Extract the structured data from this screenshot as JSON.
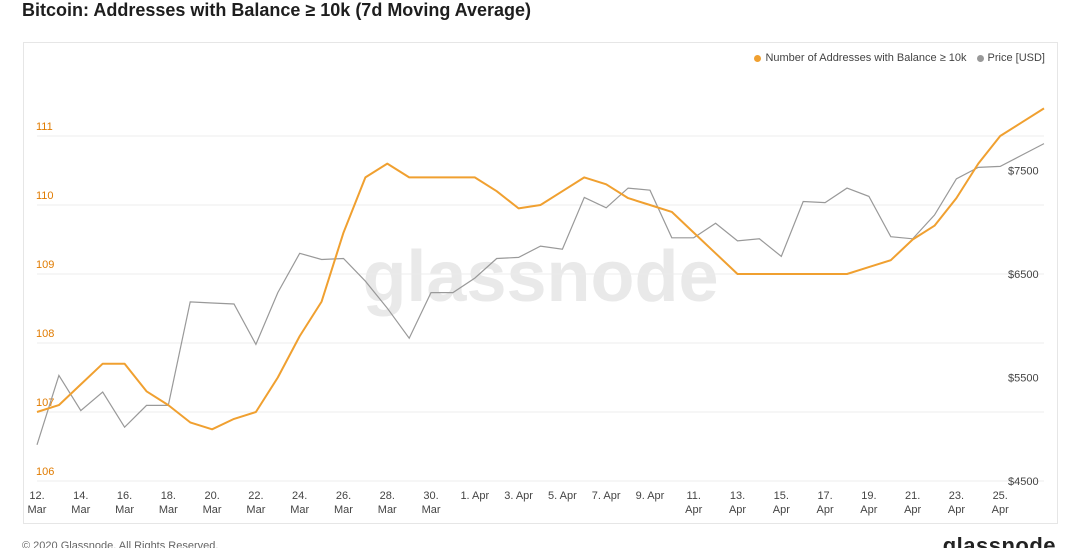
{
  "title": "Bitcoin: Addresses with Balance ≥ 10k (7d Moving Average)",
  "watermark": "glassnode",
  "footer": {
    "copyright": "© 2020 Glassnode. All Rights Reserved.",
    "logo": "glassnode"
  },
  "colors": {
    "addresses": "#f0a030",
    "price": "#999999",
    "grid": "#ececec",
    "left_axis_text": "#e07b00",
    "right_axis_text": "#444444"
  },
  "chart_data": {
    "type": "line",
    "legend_position": "top-right",
    "grid": true,
    "x": [
      "2020-03-11",
      "2020-03-12",
      "2020-03-13",
      "2020-03-14",
      "2020-03-15",
      "2020-03-16",
      "2020-03-17",
      "2020-03-18",
      "2020-03-19",
      "2020-03-20",
      "2020-03-21",
      "2020-03-22",
      "2020-03-23",
      "2020-03-24",
      "2020-03-25",
      "2020-03-26",
      "2020-03-27",
      "2020-03-28",
      "2020-03-29",
      "2020-03-30",
      "2020-03-31",
      "2020-04-01",
      "2020-04-02",
      "2020-04-03",
      "2020-04-04",
      "2020-04-05",
      "2020-04-06",
      "2020-04-07",
      "2020-04-08",
      "2020-04-09",
      "2020-04-10",
      "2020-04-11",
      "2020-04-12",
      "2020-04-13",
      "2020-04-14",
      "2020-04-15",
      "2020-04-16",
      "2020-04-17",
      "2020-04-18",
      "2020-04-19",
      "2020-04-20",
      "2020-04-21",
      "2020-04-22",
      "2020-04-23",
      "2020-04-24",
      "2020-04-25",
      "2020-04-26"
    ],
    "x_tick_labels": [
      {
        "x": "2020-03-11",
        "l1": "12.",
        "l2": "Mar"
      },
      {
        "x": "2020-03-13",
        "l1": "14.",
        "l2": "Mar"
      },
      {
        "x": "2020-03-15",
        "l1": "16.",
        "l2": "Mar"
      },
      {
        "x": "2020-03-17",
        "l1": "18.",
        "l2": "Mar"
      },
      {
        "x": "2020-03-19",
        "l1": "20.",
        "l2": "Mar"
      },
      {
        "x": "2020-03-21",
        "l1": "22.",
        "l2": "Mar"
      },
      {
        "x": "2020-03-23",
        "l1": "24.",
        "l2": "Mar"
      },
      {
        "x": "2020-03-25",
        "l1": "26.",
        "l2": "Mar"
      },
      {
        "x": "2020-03-27",
        "l1": "28.",
        "l2": "Mar"
      },
      {
        "x": "2020-03-29",
        "l1": "30.",
        "l2": "Mar"
      },
      {
        "x": "2020-03-31",
        "l1": "1. Apr",
        "l2": ""
      },
      {
        "x": "2020-04-02",
        "l1": "3. Apr",
        "l2": ""
      },
      {
        "x": "2020-04-04",
        "l1": "5. Apr",
        "l2": ""
      },
      {
        "x": "2020-04-06",
        "l1": "7. Apr",
        "l2": ""
      },
      {
        "x": "2020-04-08",
        "l1": "9. Apr",
        "l2": ""
      },
      {
        "x": "2020-04-10",
        "l1": "11.",
        "l2": "Apr"
      },
      {
        "x": "2020-04-12",
        "l1": "13.",
        "l2": "Apr"
      },
      {
        "x": "2020-04-14",
        "l1": "15.",
        "l2": "Apr"
      },
      {
        "x": "2020-04-16",
        "l1": "17.",
        "l2": "Apr"
      },
      {
        "x": "2020-04-18",
        "l1": "19.",
        "l2": "Apr"
      },
      {
        "x": "2020-04-20",
        "l1": "21.",
        "l2": "Apr"
      },
      {
        "x": "2020-04-22",
        "l1": "23.",
        "l2": "Apr"
      },
      {
        "x": "2020-04-24",
        "l1": "25.",
        "l2": "Apr"
      }
    ],
    "x_range": [
      "2020-03-11",
      "2020-04-26"
    ],
    "y_left": {
      "min": 106,
      "max": 112,
      "ticks": [
        106,
        107,
        108,
        109,
        110,
        111
      ]
    },
    "y_right": {
      "min": 4500,
      "max": 8500,
      "ticks": [
        4500,
        5500,
        6500,
        7500
      ],
      "tick_labels": [
        "$4500",
        "$5500",
        "$6500",
        "$7500"
      ]
    },
    "series": [
      {
        "name": "Number of Addresses with Balance ≥ 10k",
        "axis": "left",
        "values": [
          107.0,
          107.1,
          107.4,
          107.7,
          107.7,
          107.3,
          107.1,
          106.85,
          106.75,
          106.9,
          107.0,
          107.5,
          108.1,
          108.6,
          109.6,
          110.4,
          110.6,
          110.4,
          110.4,
          110.4,
          110.4,
          110.2,
          109.95,
          110.0,
          110.2,
          110.4,
          110.3,
          110.1,
          110.0,
          109.9,
          109.6,
          109.3,
          109.0,
          109.0,
          109.0,
          109.0,
          109.0,
          109.0,
          109.1,
          109.2,
          109.5,
          109.7,
          110.1,
          110.6,
          111.0,
          111.2,
          111.4
        ]
      },
      {
        "name": "Price [USD]",
        "axis": "right",
        "values": [
          4850,
          5520,
          5180,
          5360,
          5020,
          5230,
          5230,
          6230,
          6220,
          6210,
          5820,
          6320,
          6700,
          6640,
          6650,
          6430,
          6170,
          5880,
          6320,
          6320,
          6460,
          6650,
          6660,
          6770,
          6740,
          7240,
          7140,
          7330,
          7310,
          6850,
          6850,
          6990,
          6820,
          6840,
          6670,
          7200,
          7190,
          7330,
          7250,
          6860,
          6840,
          7070,
          7420,
          7530,
          7540,
          7650,
          7760
        ]
      }
    ]
  }
}
